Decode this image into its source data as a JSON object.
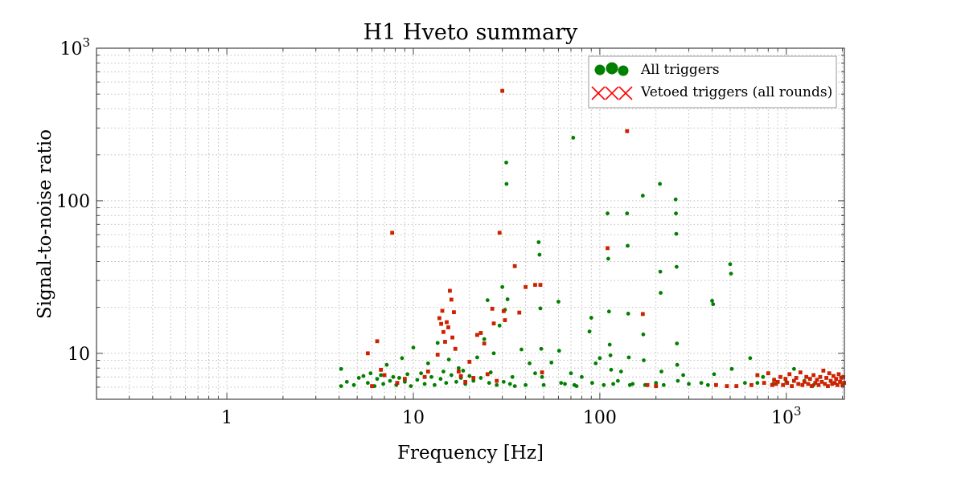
{
  "chart_data": {
    "type": "scatter",
    "title": "H1 Hveto summary",
    "xlabel": "Frequency [Hz]",
    "ylabel": "Signal-to-noise ratio",
    "xscale": "log",
    "yscale": "log",
    "xlim": [
      0.2,
      2048
    ],
    "ylim": [
      5,
      1000
    ],
    "x_ticks": [
      {
        "value": 1,
        "base": "1",
        "exp": ""
      },
      {
        "value": 10,
        "base": "10",
        "exp": ""
      },
      {
        "value": 100,
        "base": "100",
        "exp": ""
      },
      {
        "value": 1000,
        "base": "10",
        "exp": "3"
      }
    ],
    "y_ticks": [
      {
        "value": 10,
        "base": "10",
        "exp": ""
      },
      {
        "value": 100,
        "base": "100",
        "exp": ""
      },
      {
        "value": 1000,
        "base": "10",
        "exp": "3"
      }
    ],
    "grid": true,
    "legend_position": "top-right",
    "series": [
      {
        "name": "All triggers",
        "marker": "circle",
        "color": "#008000",
        "points": [
          [
            4.1,
            6.1
          ],
          [
            4.1,
            7.9
          ],
          [
            4.4,
            6.5
          ],
          [
            4.8,
            6.2
          ],
          [
            5.1,
            6.9
          ],
          [
            5.4,
            7.1
          ],
          [
            5.7,
            6.4
          ],
          [
            5.9,
            7.4
          ],
          [
            6.2,
            6.1
          ],
          [
            6.4,
            6.8
          ],
          [
            6.7,
            7.2
          ],
          [
            6.9,
            6.3
          ],
          [
            7.2,
            8.4
          ],
          [
            7.5,
            6.6
          ],
          [
            7.8,
            7.0
          ],
          [
            8.1,
            6.2
          ],
          [
            8.4,
            6.9
          ],
          [
            8.7,
            9.3
          ],
          [
            9.0,
            6.5
          ],
          [
            9.3,
            7.3
          ],
          [
            9.7,
            6.1
          ],
          [
            10.0,
            10.9
          ],
          [
            10.5,
            6.7
          ],
          [
            11.0,
            7.4
          ],
          [
            11.5,
            6.3
          ],
          [
            12.0,
            8.6
          ],
          [
            12.5,
            7.0
          ],
          [
            13.0,
            6.2
          ],
          [
            13.5,
            11.7
          ],
          [
            14.0,
            6.8
          ],
          [
            14.5,
            7.6
          ],
          [
            15.0,
            6.4
          ],
          [
            15.5,
            9.1
          ],
          [
            16.0,
            7.2
          ],
          [
            17.0,
            6.5
          ],
          [
            17.5,
            8.0
          ],
          [
            18.0,
            6.9
          ],
          [
            18.5,
            7.7
          ],
          [
            19.0,
            6.3
          ],
          [
            20.0,
            7.1
          ],
          [
            21.0,
            6.6
          ],
          [
            22.0,
            9.4
          ],
          [
            23.0,
            6.9
          ],
          [
            24.0,
            12.4
          ],
          [
            25.0,
            22.3
          ],
          [
            25.5,
            6.4
          ],
          [
            26.0,
            7.5
          ],
          [
            27.0,
            10.0
          ],
          [
            28.0,
            6.2
          ],
          [
            29.0,
            15.2
          ],
          [
            30.0,
            27.2
          ],
          [
            30.5,
            6.5
          ],
          [
            31.0,
            19.3
          ],
          [
            31.5,
            178
          ],
          [
            31.6,
            129
          ],
          [
            32.0,
            22.6
          ],
          [
            33.0,
            6.3
          ],
          [
            34.0,
            7.0
          ],
          [
            35.0,
            6.1
          ],
          [
            38.0,
            10.6
          ],
          [
            40.0,
            6.2
          ],
          [
            42.0,
            8.6
          ],
          [
            45.0,
            7.4
          ],
          [
            47.0,
            53.5
          ],
          [
            47.5,
            44.3
          ],
          [
            48.0,
            19.7
          ],
          [
            48.5,
            10.7
          ],
          [
            49.0,
            7.0
          ],
          [
            50.0,
            6.2
          ],
          [
            55.0,
            8.7
          ],
          [
            60.0,
            21.8
          ],
          [
            60.5,
            10.4
          ],
          [
            62.0,
            6.4
          ],
          [
            65.0,
            6.3
          ],
          [
            70.0,
            7.4
          ],
          [
            72.0,
            259
          ],
          [
            73.0,
            6.2
          ],
          [
            75.0,
            6.1
          ],
          [
            80.0,
            7.0
          ],
          [
            88.0,
            13.9
          ],
          [
            90.0,
            17.1
          ],
          [
            91.0,
            6.4
          ],
          [
            95.0,
            8.6
          ],
          [
            100.0,
            9.3
          ],
          [
            105.0,
            6.2
          ],
          [
            110.0,
            82.6
          ],
          [
            111.0,
            41.7
          ],
          [
            112.0,
            18.8
          ],
          [
            113.0,
            11.4
          ],
          [
            114.0,
            9.7
          ],
          [
            115.0,
            7.8
          ],
          [
            118.0,
            6.3
          ],
          [
            125.0,
            6.6
          ],
          [
            130.0,
            7.6
          ],
          [
            140.0,
            82.6
          ],
          [
            141.0,
            50.7
          ],
          [
            142.0,
            18.2
          ],
          [
            143.0,
            9.4
          ],
          [
            145.0,
            6.2
          ],
          [
            150.0,
            6.3
          ],
          [
            170.0,
            108
          ],
          [
            171.0,
            13.3
          ],
          [
            172.0,
            9.0
          ],
          [
            175.0,
            6.2
          ],
          [
            200.0,
            6.4
          ],
          [
            210.0,
            129
          ],
          [
            211.0,
            34.3
          ],
          [
            212.0,
            24.9
          ],
          [
            214.0,
            7.6
          ],
          [
            220.0,
            6.2
          ],
          [
            255.0,
            102
          ],
          [
            256.0,
            82.6
          ],
          [
            257.0,
            60.7
          ],
          [
            258.0,
            36.9
          ],
          [
            259.0,
            11.6
          ],
          [
            260.0,
            8.4
          ],
          [
            262.0,
            6.6
          ],
          [
            280.0,
            7.2
          ],
          [
            300.0,
            6.3
          ],
          [
            350.0,
            6.4
          ],
          [
            380.0,
            6.2
          ],
          [
            400.0,
            22.1
          ],
          [
            405.0,
            21.0
          ],
          [
            410.0,
            7.3
          ],
          [
            500.0,
            38.4
          ],
          [
            505.0,
            33.3
          ],
          [
            510.0,
            7.9
          ],
          [
            600.0,
            6.4
          ],
          [
            640.0,
            9.3
          ],
          [
            700.0,
            6.4
          ],
          [
            750.0,
            7.0
          ],
          [
            850.0,
            6.3
          ],
          [
            1000.0,
            6.5
          ],
          [
            1100.0,
            7.9
          ],
          [
            1250.0,
            6.6
          ],
          [
            1400.0,
            6.2
          ]
        ]
      },
      {
        "name": "Vetoed triggers (all rounds)",
        "marker": "x",
        "color": "#ff0000",
        "points": [
          [
            5.7,
            10.0
          ],
          [
            6.0,
            6.1
          ],
          [
            6.4,
            12.0
          ],
          [
            6.7,
            7.8
          ],
          [
            7.0,
            7.2
          ],
          [
            7.7,
            61.7
          ],
          [
            8.2,
            6.4
          ],
          [
            9.0,
            6.8
          ],
          [
            11.5,
            7.0
          ],
          [
            12.0,
            7.6
          ],
          [
            13.5,
            9.8
          ],
          [
            13.8,
            17.0
          ],
          [
            14.1,
            15.6
          ],
          [
            14.3,
            19.0
          ],
          [
            14.5,
            13.8
          ],
          [
            14.8,
            11.9
          ],
          [
            15.1,
            16.0
          ],
          [
            15.4,
            14.8
          ],
          [
            15.7,
            25.7
          ],
          [
            16.0,
            22.5
          ],
          [
            16.2,
            12.7
          ],
          [
            16.5,
            18.6
          ],
          [
            16.8,
            10.7
          ],
          [
            17.5,
            7.6
          ],
          [
            18.0,
            7.1
          ],
          [
            19.0,
            6.5
          ],
          [
            20.0,
            8.8
          ],
          [
            21.0,
            6.9
          ],
          [
            22.0,
            13.2
          ],
          [
            23.0,
            13.6
          ],
          [
            24.0,
            11.6
          ],
          [
            25.0,
            7.3
          ],
          [
            26.5,
            19.6
          ],
          [
            27.0,
            15.7
          ],
          [
            28.0,
            6.6
          ],
          [
            29.0,
            61.7
          ],
          [
            30.0,
            525
          ],
          [
            30.5,
            18.9
          ],
          [
            31.0,
            16.5
          ],
          [
            35.0,
            37.3
          ],
          [
            37.0,
            18.5
          ],
          [
            40.0,
            27.2
          ],
          [
            45.0,
            28.1
          ],
          [
            48.0,
            28.1
          ],
          [
            49.0,
            7.5
          ],
          [
            110.0,
            48.9
          ],
          [
            140.0,
            286
          ],
          [
            170.0,
            18.1
          ],
          [
            180.0,
            6.2
          ],
          [
            200.0,
            6.1
          ],
          [
            420.0,
            6.2
          ],
          [
            480.0,
            6.1
          ],
          [
            540.0,
            6.1
          ],
          [
            650.0,
            6.2
          ],
          [
            700.0,
            7.2
          ],
          [
            760.0,
            6.4
          ],
          [
            800.0,
            7.4
          ],
          [
            840.0,
            6.2
          ],
          [
            860.0,
            6.7
          ],
          [
            880.0,
            6.3
          ],
          [
            900.0,
            6.5
          ],
          [
            930.0,
            7.0
          ],
          [
            960.0,
            6.2
          ],
          [
            990.0,
            6.8
          ],
          [
            1010.0,
            6.4
          ],
          [
            1040.0,
            7.3
          ],
          [
            1070.0,
            6.1
          ],
          [
            1100.0,
            6.6
          ],
          [
            1130.0,
            6.9
          ],
          [
            1160.0,
            6.3
          ],
          [
            1190.0,
            7.5
          ],
          [
            1220.0,
            6.2
          ],
          [
            1250.0,
            6.5
          ],
          [
            1280.0,
            7.0
          ],
          [
            1310.0,
            6.3
          ],
          [
            1340.0,
            6.8
          ],
          [
            1370.0,
            6.1
          ],
          [
            1400.0,
            7.2
          ],
          [
            1430.0,
            6.4
          ],
          [
            1460.0,
            6.7
          ],
          [
            1490.0,
            6.2
          ],
          [
            1520.0,
            7.0
          ],
          [
            1550.0,
            6.5
          ],
          [
            1580.0,
            7.7
          ],
          [
            1610.0,
            6.3
          ],
          [
            1640.0,
            6.9
          ],
          [
            1670.0,
            6.1
          ],
          [
            1700.0,
            7.4
          ],
          [
            1730.0,
            6.6
          ],
          [
            1760.0,
            6.3
          ],
          [
            1790.0,
            7.1
          ],
          [
            1820.0,
            6.4
          ],
          [
            1850.0,
            6.8
          ],
          [
            1880.0,
            6.2
          ],
          [
            1910.0,
            7.3
          ],
          [
            1940.0,
            6.5
          ],
          [
            1970.0,
            6.9
          ],
          [
            2000.0,
            6.2
          ],
          [
            2020.0,
            7.0
          ],
          [
            2040.0,
            6.4
          ]
        ]
      }
    ]
  }
}
